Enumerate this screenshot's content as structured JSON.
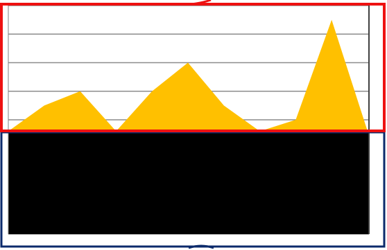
{
  "chart_data": {
    "type": "area",
    "categories": [
      null,
      null,
      null,
      null,
      null,
      null,
      null,
      null,
      null,
      null,
      null
    ],
    "values": [
      3.6,
      4.5,
      5,
      3.6,
      5,
      6,
      4.5,
      3.6,
      4,
      7.5,
      3.6
    ],
    "color": "#ffc000",
    "ylim": [
      0,
      8
    ],
    "yticks": [
      0,
      1,
      2,
      3,
      4,
      5,
      6,
      7,
      8
    ],
    "grid": true
  }
}
